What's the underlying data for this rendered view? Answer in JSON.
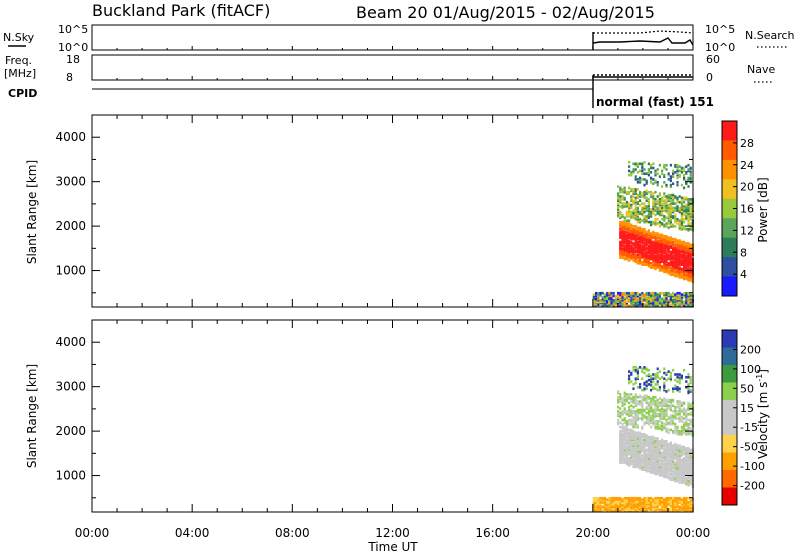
{
  "header": {
    "station": "Buckland Park (fitACF)",
    "beam_date": "Beam 20 01/Aug/2015 - 02/Aug/2015"
  },
  "mini_panels": {
    "nsky_label": "N.Sky",
    "nsky_ticks": [
      "10^5",
      "10^0"
    ],
    "nsearch_label": "N.Search",
    "nsearch_ticks": [
      "10^5",
      "10^0"
    ],
    "freq_label": "Freq.",
    "freq_unit": "[MHz]",
    "freq_ticks": [
      "18",
      "8"
    ],
    "nave_label": "Nave",
    "nave_ticks": [
      "60",
      "0"
    ],
    "cpid_label": "CPID",
    "cpid_value": "normal (fast) 151"
  },
  "colors": {
    "power_scale": [
      "#1a1aff",
      "#2c4fa0",
      "#2e7d5a",
      "#5aa55a",
      "#9ac83c",
      "#f0c020",
      "#ff9000",
      "#ff5a00",
      "#ff1a1a"
    ],
    "velocity_scale": [
      "#e60000",
      "#ff6a00",
      "#ffa000",
      "#ffd24a",
      "#c8c8c8",
      "#c8c8c8",
      "#8ccf4a",
      "#3d9a3d",
      "#2e6a9a",
      "#2a3ab4"
    ]
  },
  "chart_data": [
    {
      "type": "heatmap",
      "name": "power",
      "ylabel": "Slant Range [km]",
      "xlabel": "Time UT",
      "x_ticks": [
        "00:00",
        "04:00",
        "08:00",
        "12:00",
        "16:00",
        "20:00",
        "00:00"
      ],
      "y_ticks": [
        1000,
        2000,
        3000,
        4000
      ],
      "ylim": [
        180,
        4500
      ],
      "xlim_hours": [
        0,
        24
      ],
      "colorbar_label": "Power [dB]",
      "colorbar_ticks": [
        "28",
        "24",
        "20",
        "16",
        "12",
        "8",
        "4"
      ],
      "data_time_range_hours": [
        20,
        24
      ],
      "features": [
        {
          "range_km": [
            200,
            500
          ],
          "hours": [
            20,
            24
          ],
          "level_db": "mixed 4-24"
        },
        {
          "range_km": [
            800,
            1800
          ],
          "hours": [
            21,
            24
          ],
          "level_db": "28+"
        },
        {
          "range_km": [
            1800,
            2800
          ],
          "hours": [
            20.8,
            24
          ],
          "level_db": "8-24"
        },
        {
          "range_km": [
            3000,
            3600
          ],
          "hours": [
            21.2,
            23.8
          ],
          "level_db": "4-16"
        }
      ]
    },
    {
      "type": "heatmap",
      "name": "velocity",
      "ylabel": "Slant Range [km]",
      "xlabel": "Time UT",
      "x_ticks": [
        "00:00",
        "04:00",
        "08:00",
        "12:00",
        "16:00",
        "20:00",
        "00:00"
      ],
      "y_ticks": [
        1000,
        2000,
        3000,
        4000
      ],
      "ylim": [
        180,
        4500
      ],
      "xlim_hours": [
        0,
        24
      ],
      "colorbar_label": "Velocity [m s^-1]",
      "colorbar_ticks": [
        "200",
        "100",
        "50",
        "15",
        "-15",
        "-50",
        "-100",
        "-200"
      ],
      "data_time_range_hours": [
        20,
        24
      ],
      "features": [
        {
          "range_km": [
            200,
            500
          ],
          "hours": [
            20,
            24
          ],
          "velocity_ms": "-50 to -100"
        },
        {
          "range_km": [
            800,
            2600
          ],
          "hours": [
            21,
            24
          ],
          "velocity_ms": "-15 to 15"
        },
        {
          "range_km": [
            1800,
            3600
          ],
          "hours": [
            20.8,
            24
          ],
          "velocity_ms": "15 to 50"
        }
      ]
    }
  ],
  "axis": {
    "xlabel": "Time UT",
    "ylabel": "Slant Range [km]",
    "power_cb_label": "Power [dB]",
    "velocity_cb_label": "Velocity [m s"
  }
}
